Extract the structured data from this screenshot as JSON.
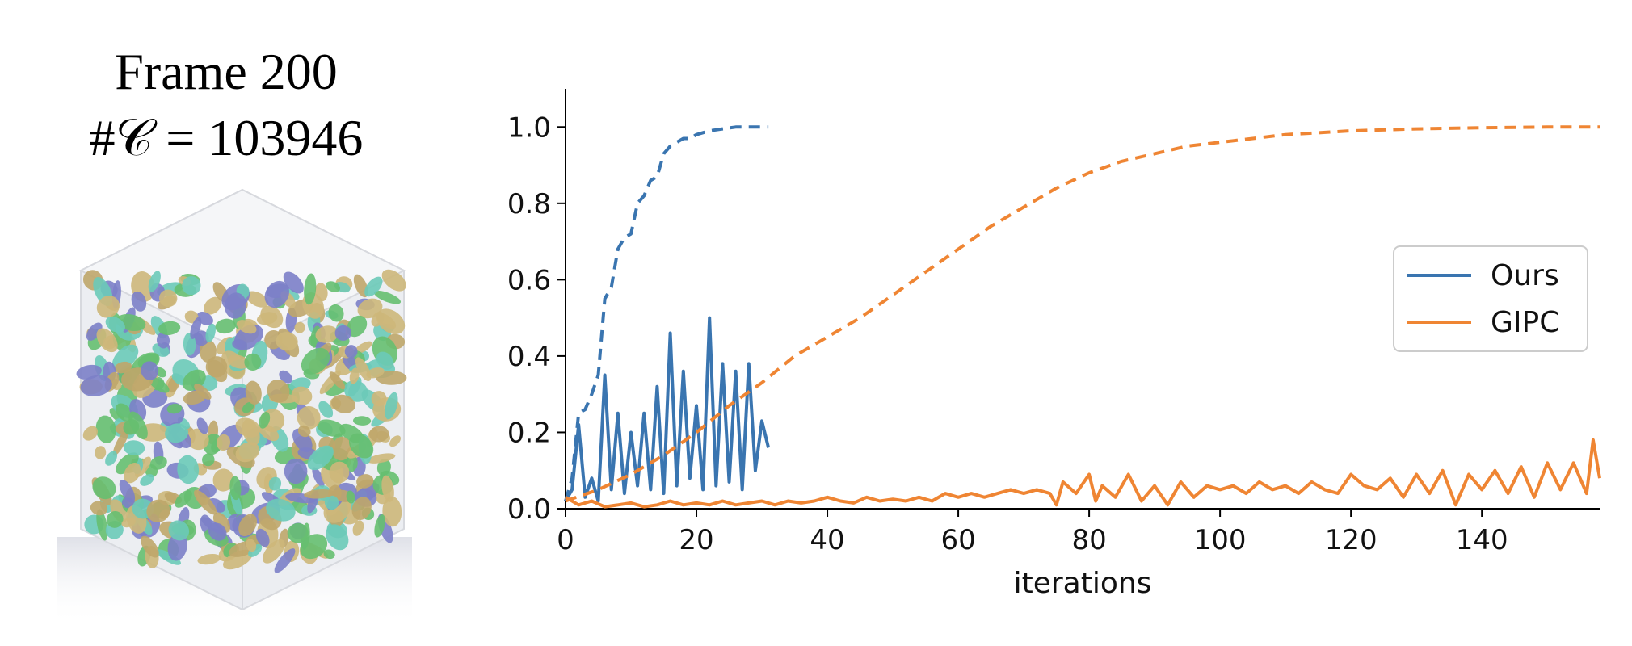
{
  "figure": {
    "title_line1": "Frame 200",
    "title_line2": "#𝒞 = 103946"
  },
  "chart_data": {
    "type": "line",
    "xlabel": "iterations",
    "ylabel": "",
    "xlim": [
      0,
      158
    ],
    "ylim": [
      0,
      1.1
    ],
    "xticks": [
      0,
      20,
      40,
      60,
      80,
      100,
      120,
      140
    ],
    "yticks": [
      0.0,
      0.2,
      0.4,
      0.6,
      0.8,
      1.0
    ],
    "legend_position": "center-right",
    "series": [
      {
        "name": "Ours",
        "color": "#3a75b0",
        "style": "solid",
        "x": [
          0,
          1,
          2,
          3,
          4,
          5,
          6,
          7,
          8,
          9,
          10,
          11,
          12,
          13,
          14,
          15,
          16,
          17,
          18,
          19,
          20,
          21,
          22,
          23,
          24,
          25,
          26,
          27,
          28,
          29,
          30,
          31
        ],
        "values": [
          0.02,
          0.05,
          0.22,
          0.03,
          0.08,
          0.02,
          0.35,
          0.05,
          0.25,
          0.04,
          0.2,
          0.06,
          0.25,
          0.05,
          0.32,
          0.04,
          0.46,
          0.06,
          0.36,
          0.08,
          0.27,
          0.05,
          0.5,
          0.06,
          0.38,
          0.07,
          0.36,
          0.05,
          0.38,
          0.1,
          0.23,
          0.16
        ]
      },
      {
        "name": "",
        "color": "#3a75b0",
        "style": "dashed",
        "x": [
          0,
          1,
          2,
          3,
          4,
          5,
          6,
          7,
          8,
          9,
          10,
          11,
          12,
          13,
          14,
          15,
          16,
          17,
          18,
          19,
          20,
          22,
          24,
          26,
          28,
          31
        ],
        "values": [
          0.02,
          0.08,
          0.25,
          0.26,
          0.3,
          0.35,
          0.55,
          0.58,
          0.68,
          0.71,
          0.72,
          0.8,
          0.82,
          0.86,
          0.87,
          0.93,
          0.95,
          0.96,
          0.97,
          0.97,
          0.98,
          0.99,
          0.995,
          1.0,
          1.0,
          1.0
        ]
      },
      {
        "name": "GIPC",
        "color": "#ef8533",
        "style": "solid",
        "x": [
          0,
          2,
          4,
          6,
          8,
          10,
          12,
          14,
          16,
          18,
          20,
          22,
          24,
          26,
          28,
          30,
          32,
          34,
          36,
          38,
          40,
          42,
          44,
          46,
          48,
          50,
          52,
          54,
          56,
          58,
          60,
          62,
          64,
          66,
          68,
          70,
          72,
          74,
          75,
          76,
          78,
          80,
          81,
          82,
          84,
          86,
          88,
          90,
          92,
          94,
          96,
          98,
          100,
          102,
          104,
          106,
          108,
          110,
          112,
          114,
          116,
          118,
          120,
          122,
          124,
          126,
          128,
          130,
          132,
          134,
          136,
          138,
          140,
          142,
          144,
          146,
          148,
          150,
          152,
          154,
          156,
          157,
          158
        ],
        "values": [
          0.03,
          0.01,
          0.02,
          0.005,
          0.01,
          0.015,
          0.005,
          0.01,
          0.02,
          0.01,
          0.015,
          0.01,
          0.02,
          0.01,
          0.015,
          0.02,
          0.01,
          0.02,
          0.015,
          0.02,
          0.03,
          0.02,
          0.015,
          0.03,
          0.02,
          0.025,
          0.02,
          0.03,
          0.02,
          0.04,
          0.03,
          0.04,
          0.03,
          0.04,
          0.05,
          0.04,
          0.05,
          0.04,
          0.01,
          0.07,
          0.04,
          0.09,
          0.02,
          0.06,
          0.03,
          0.09,
          0.02,
          0.06,
          0.01,
          0.07,
          0.03,
          0.06,
          0.05,
          0.06,
          0.04,
          0.07,
          0.05,
          0.06,
          0.04,
          0.07,
          0.05,
          0.04,
          0.09,
          0.06,
          0.05,
          0.08,
          0.03,
          0.09,
          0.04,
          0.1,
          0.01,
          0.09,
          0.05,
          0.1,
          0.04,
          0.11,
          0.03,
          0.12,
          0.05,
          0.12,
          0.04,
          0.18,
          0.08
        ]
      },
      {
        "name": "",
        "color": "#ef8533",
        "style": "dashed",
        "x": [
          0,
          5,
          10,
          15,
          20,
          25,
          30,
          35,
          40,
          45,
          50,
          55,
          60,
          65,
          70,
          75,
          80,
          85,
          90,
          95,
          100,
          105,
          110,
          115,
          120,
          130,
          140,
          150,
          158
        ],
        "values": [
          0.02,
          0.05,
          0.09,
          0.14,
          0.2,
          0.27,
          0.33,
          0.4,
          0.45,
          0.5,
          0.56,
          0.62,
          0.68,
          0.74,
          0.79,
          0.84,
          0.88,
          0.91,
          0.93,
          0.95,
          0.96,
          0.97,
          0.98,
          0.985,
          0.99,
          0.995,
          0.998,
          1.0,
          1.0
        ]
      }
    ]
  }
}
